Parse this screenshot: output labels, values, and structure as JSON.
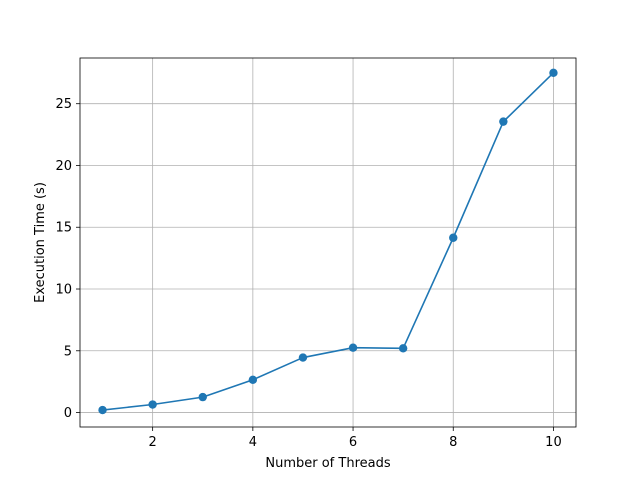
{
  "chart_data": {
    "type": "line",
    "title": "",
    "xlabel": "Number of Threads",
    "ylabel": "Execution Time (s)",
    "xlim": [
      0.55,
      10.45
    ],
    "ylim": [
      -1.17,
      28.7
    ],
    "xticks": [
      2,
      4,
      6,
      8,
      10
    ],
    "yticks": [
      0,
      5,
      10,
      15,
      20,
      25
    ],
    "grid": true,
    "legend": "none",
    "marker": "circle",
    "series": [
      {
        "color": "#1f77b4",
        "x": [
          1,
          2,
          3,
          4,
          5,
          6,
          7,
          8,
          9,
          10
        ],
        "y": [
          0.2,
          0.65,
          1.25,
          2.65,
          4.45,
          5.25,
          5.2,
          14.15,
          23.55,
          27.5
        ]
      }
    ]
  }
}
